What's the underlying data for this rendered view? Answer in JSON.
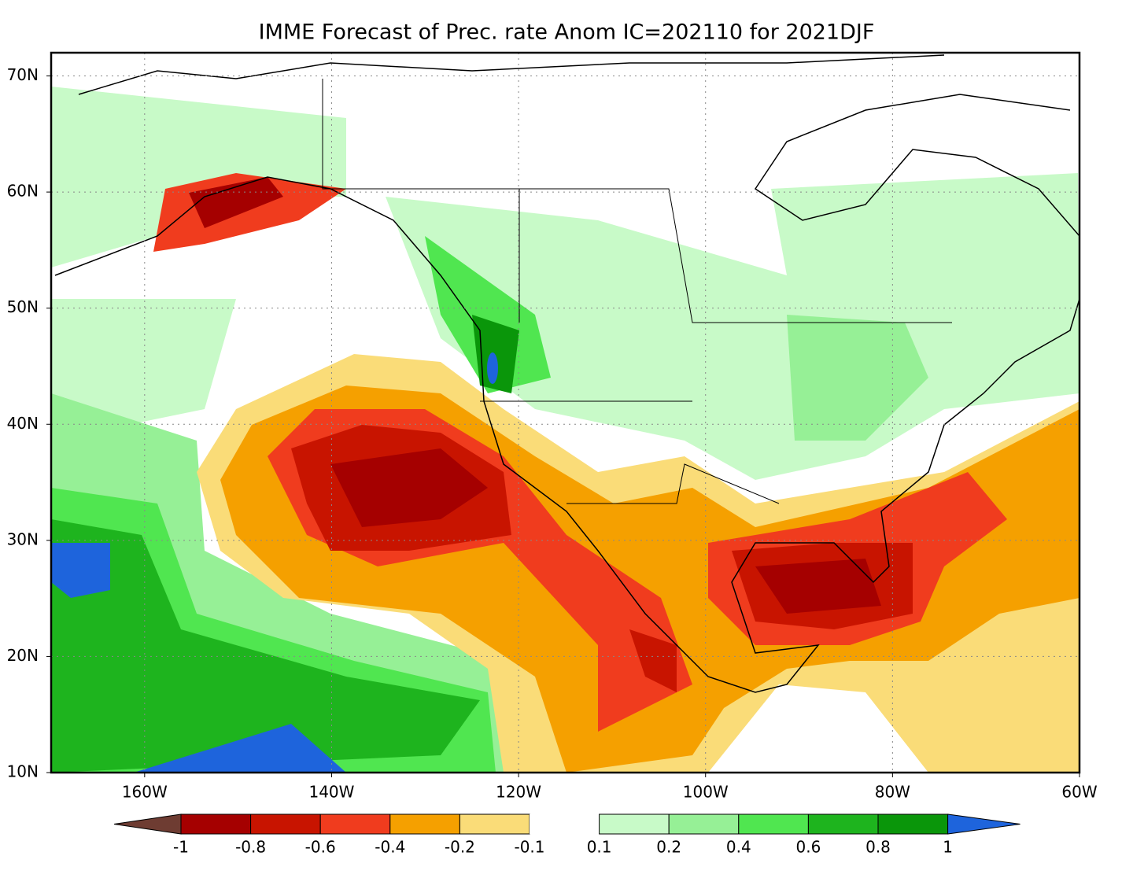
{
  "map": {
    "title": "IMME Forecast of Prec. rate Anom IC=202110 for 2021DJF",
    "lonlim": [
      -170,
      -60
    ],
    "latlim": [
      10,
      72
    ],
    "latticks": [
      {
        "value": 10,
        "label": "10N"
      },
      {
        "value": 20,
        "label": "20N"
      },
      {
        "value": 30,
        "label": "30N"
      },
      {
        "value": 40,
        "label": "40N"
      },
      {
        "value": 50,
        "label": "50N"
      },
      {
        "value": 60,
        "label": "60N"
      },
      {
        "value": 70,
        "label": "70N"
      }
    ],
    "lonticks": [
      {
        "value": -160,
        "label": "160W"
      },
      {
        "value": -140,
        "label": "140W"
      },
      {
        "value": -120,
        "label": "120W"
      },
      {
        "value": -100,
        "label": "100W"
      },
      {
        "value": -80,
        "label": "80W"
      },
      {
        "value": -60,
        "label": "60W"
      }
    ],
    "grid": true,
    "colorbar": {
      "levels": [
        -1,
        -0.8,
        -0.6,
        -0.4,
        -0.2,
        -0.1,
        0.1,
        0.2,
        0.4,
        0.6,
        0.8,
        1
      ],
      "colors": [
        "#6e3c32",
        "#a50000",
        "#c81400",
        "#f03c1e",
        "#f5a000",
        "#fadc78",
        "#ffffff",
        "#c8fac8",
        "#96f096",
        "#50e650",
        "#1eb41e",
        "#0a960a",
        "#1e64dc"
      ]
    }
  }
}
